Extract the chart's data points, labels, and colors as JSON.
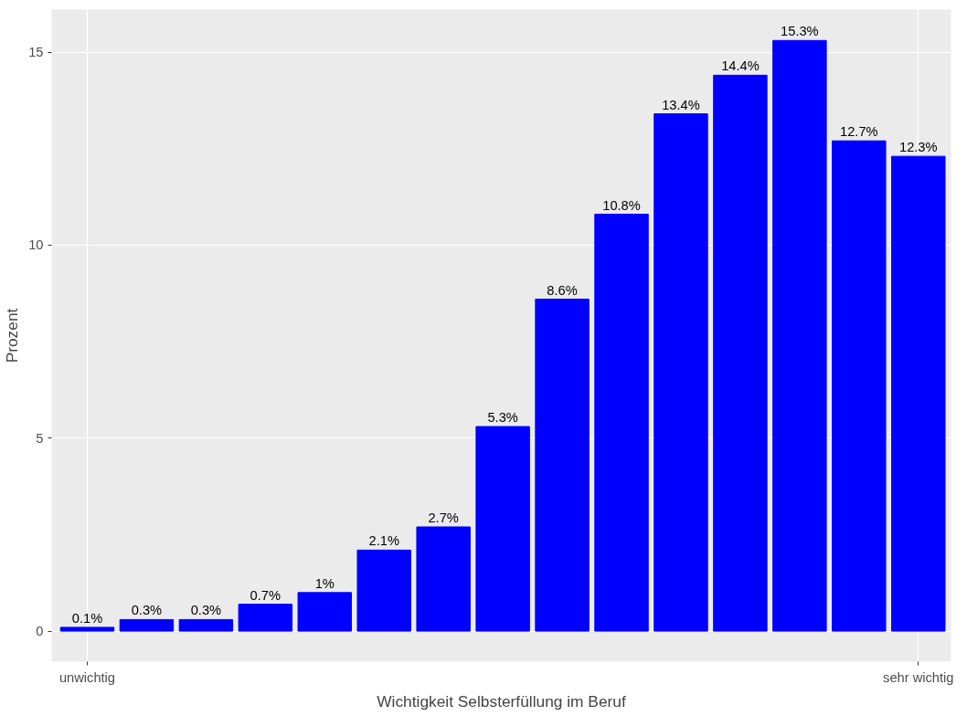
{
  "chart_data": {
    "type": "bar",
    "xlabel": "Wichtigkeit Selbsterfüllung im Beruf",
    "ylabel": "Prozent",
    "categories": [
      "unwichtig",
      null,
      null,
      null,
      null,
      null,
      null,
      null,
      null,
      null,
      null,
      null,
      null,
      null,
      "sehr wichtig"
    ],
    "values": [
      0.1,
      0.3,
      0.3,
      0.7,
      1,
      2.1,
      2.7,
      5.3,
      8.6,
      10.8,
      13.4,
      14.4,
      15.3,
      12.7,
      12.3
    ],
    "value_labels": [
      "0.1%",
      "0.3%",
      "0.3%",
      "0.7%",
      "1%",
      "2.1%",
      "2.7%",
      "5.3%",
      "8.6%",
      "10.8%",
      "13.4%",
      "14.4%",
      "15.3%",
      "12.7%",
      "12.3%"
    ],
    "color": "#0000ff",
    "ylim": [
      -0.79,
      16.1
    ],
    "yticks": [
      0,
      5,
      10,
      15
    ],
    "grid": true
  }
}
